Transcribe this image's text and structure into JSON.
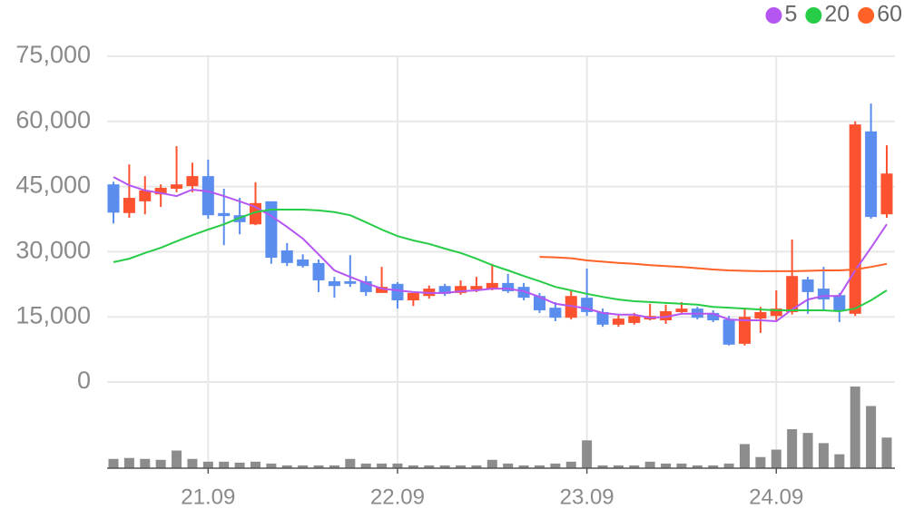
{
  "chart_data": {
    "type": "candlestick",
    "categories": [
      null,
      null,
      null,
      null,
      null,
      null,
      "21.09",
      null,
      null,
      null,
      null,
      null,
      null,
      null,
      null,
      null,
      null,
      null,
      "22.09",
      null,
      null,
      null,
      null,
      null,
      null,
      null,
      null,
      null,
      null,
      null,
      "23.09",
      null,
      null,
      null,
      null,
      null,
      null,
      null,
      null,
      null,
      null,
      null,
      "24.09",
      null,
      null,
      null,
      null,
      null,
      null,
      null
    ],
    "open": [
      45500,
      38900,
      41600,
      43200,
      44500,
      45100,
      47400,
      38900,
      38400,
      36300,
      41600,
      30300,
      28200,
      27400,
      23200,
      23200,
      23200,
      20500,
      22600,
      18800,
      19800,
      22100,
      20500,
      21300,
      21300,
      22800,
      21900,
      19800,
      17100,
      14800,
      19400,
      16100,
      13200,
      13600,
      14400,
      14200,
      16100,
      16900,
      15900,
      14400,
      8800,
      14600,
      15200,
      16100,
      23600,
      21500,
      20000,
      15700,
      57700,
      38600
    ],
    "high": [
      46100,
      50100,
      47400,
      45500,
      54300,
      50500,
      51200,
      44500,
      42400,
      46000,
      41600,
      32000,
      29400,
      28200,
      24200,
      29200,
      24400,
      26500,
      23000,
      20500,
      22200,
      22600,
      23400,
      24200,
      27200,
      24900,
      22800,
      20500,
      18400,
      21100,
      26100,
      16900,
      15500,
      15900,
      18000,
      17800,
      18400,
      17300,
      16500,
      15200,
      17100,
      17300,
      21100,
      32800,
      24200,
      26500,
      20500,
      60000,
      64100,
      54500
    ],
    "low": [
      36500,
      37800,
      38600,
      40300,
      43700,
      43700,
      37600,
      31500,
      34000,
      36100,
      27200,
      26700,
      26300,
      20700,
      19400,
      21900,
      19800,
      20700,
      16900,
      17500,
      19200,
      19800,
      20100,
      20700,
      21100,
      20500,
      18800,
      15900,
      14000,
      14400,
      15200,
      12700,
      12700,
      13200,
      14200,
      13400,
      15500,
      14400,
      13800,
      8400,
      8400,
      11300,
      14000,
      15500,
      15700,
      16500,
      13800,
      15200,
      37600,
      37800
    ],
    "close": [
      39000,
      42400,
      44100,
      44700,
      45500,
      47400,
      38400,
      38200,
      36800,
      41200,
      28600,
      27400,
      26700,
      23400,
      22100,
      22600,
      20700,
      21900,
      18800,
      20500,
      21500,
      20300,
      22100,
      22100,
      22800,
      20900,
      19400,
      16500,
      14800,
      19800,
      16100,
      13200,
      14600,
      15200,
      15200,
      16300,
      16900,
      14800,
      14200,
      8600,
      15000,
      16100,
      16900,
      24400,
      20700,
      19000,
      16300,
      59300,
      38000,
      48000
    ],
    "up_color": "#fc5230",
    "down_color": "#5b8def",
    "volume": {
      "color": "#8c8c8c",
      "values": [
        10,
        11,
        10,
        9,
        19,
        10,
        7,
        7,
        6,
        7,
        5,
        3,
        3,
        3,
        3,
        10,
        5,
        5,
        5,
        3,
        3,
        3,
        3,
        3,
        9,
        5,
        3,
        3,
        5,
        7,
        30,
        3,
        3,
        3,
        7,
        5,
        5,
        3,
        3,
        5,
        26,
        12,
        20,
        42,
        38,
        27,
        15,
        88,
        67,
        33
      ]
    },
    "series": [
      {
        "name": "5",
        "color": "#b556f2",
        "values": [
          47200,
          45300,
          44100,
          43500,
          42800,
          44300,
          43900,
          42800,
          41600,
          40300,
          38200,
          35700,
          33000,
          29400,
          25700,
          24200,
          22800,
          21500,
          21100,
          20700,
          20500,
          20500,
          20900,
          21100,
          21500,
          21500,
          20900,
          19600,
          18000,
          17500,
          16900,
          15900,
          15500,
          15500,
          14800,
          15000,
          15700,
          15700,
          15700,
          14400,
          14200,
          14200,
          14000,
          16700,
          19000,
          19800,
          19800,
          25700,
          30900,
          36300
        ]
      },
      {
        "name": "20",
        "color": "#27cc47",
        "values": [
          27600,
          28400,
          29700,
          30900,
          32400,
          33800,
          35100,
          36300,
          37800,
          39100,
          39700,
          39700,
          39700,
          39500,
          39100,
          38400,
          36800,
          35100,
          33600,
          32600,
          31800,
          30700,
          29700,
          28400,
          26900,
          25700,
          24400,
          23200,
          21900,
          21100,
          20300,
          19600,
          19000,
          18600,
          18400,
          18200,
          18000,
          17800,
          17300,
          17100,
          16900,
          16700,
          16500,
          16500,
          16500,
          16500,
          16300,
          16900,
          18800,
          21100
        ]
      },
      {
        "name": "60",
        "color": "#ff6126",
        "values": [
          null,
          null,
          null,
          null,
          null,
          null,
          null,
          null,
          null,
          null,
          null,
          null,
          null,
          null,
          null,
          null,
          null,
          null,
          null,
          null,
          null,
          null,
          null,
          null,
          null,
          null,
          null,
          28800,
          28700,
          28500,
          28000,
          27700,
          27400,
          27200,
          26900,
          26700,
          26500,
          26200,
          25900,
          25700,
          25600,
          25500,
          25500,
          25500,
          25600,
          25700,
          25700,
          25900,
          26500,
          27200
        ]
      }
    ],
    "ylim": [
      0,
      75000
    ],
    "yticks": [
      0,
      {
        "value": 15000,
        "label": "15,000"
      },
      {
        "value": 30000,
        "label": "30,000"
      },
      {
        "value": 45000,
        "label": "45,000"
      },
      {
        "value": 60000,
        "label": "60,000"
      },
      {
        "value": 75000,
        "label": "75,000"
      }
    ],
    "grid": true,
    "legend": "top-right"
  }
}
